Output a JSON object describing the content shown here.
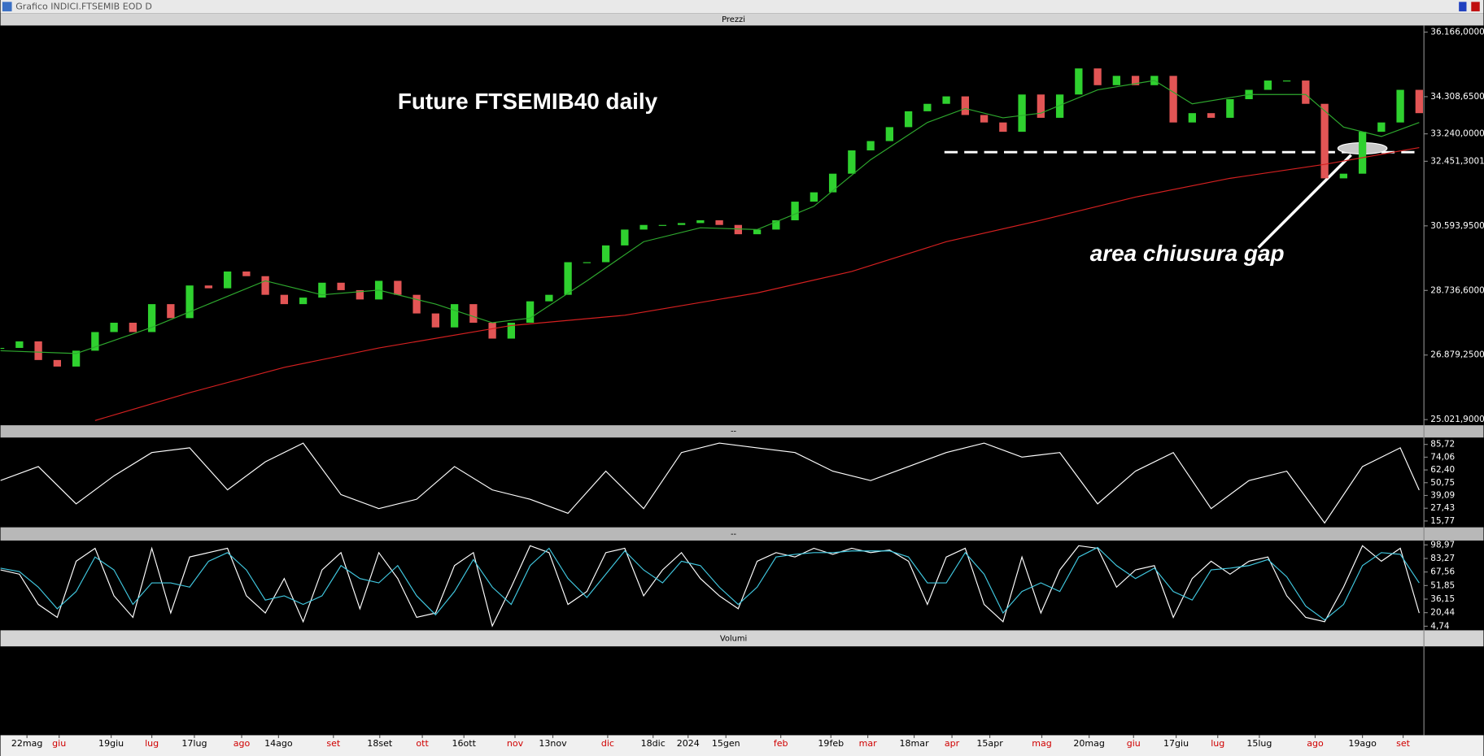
{
  "window_title": "Grafico INDICI.FTSEMIB EOD D",
  "chart_data": [
    {
      "type": "candlestick",
      "panel_title": "Prezzi",
      "title": "Future FTSEMIB40 daily",
      "annotation": "area chiusura gap",
      "close": [
        27084,
        27272,
        26736,
        26548,
        27004,
        27540,
        27808,
        27540,
        28343,
        27941,
        28879,
        28799,
        29281,
        29147,
        28611,
        28343,
        28531,
        28959,
        28745,
        28477,
        29013,
        28611,
        28075,
        27674,
        28343,
        27808,
        27352,
        27808,
        28424,
        28611,
        29549,
        29549,
        30031,
        30487,
        30620,
        30620,
        30674,
        30754,
        30620,
        30353,
        30487,
        30754,
        31290,
        31558,
        32094,
        32764,
        33032,
        33433,
        33889,
        34103,
        34317,
        33782,
        33567,
        33299,
        34371,
        33701,
        34371,
        35121,
        34639,
        34907,
        34639,
        34907,
        33567,
        33835,
        33701,
        34237,
        34505,
        34773,
        34773,
        34103,
        31960,
        32094,
        33299,
        33567,
        34505,
        33835
      ],
      "up_color": "#2fd12f",
      "down_color": "#e25555",
      "lines": [
        {
          "color": "#2ea82e",
          "x": [
            0,
            4,
            8,
            11,
            14,
            17,
            20,
            23,
            26,
            28,
            31,
            34,
            37,
            40,
            43,
            46,
            49,
            51,
            53,
            55,
            58,
            61,
            63,
            66,
            69,
            71,
            73,
            75
          ],
          "values": [
            27004,
            26923,
            27674,
            28343,
            29013,
            28611,
            28745,
            28343,
            27808,
            27941,
            29013,
            30138,
            30540,
            30487,
            31156,
            32496,
            33567,
            33969,
            33701,
            33835,
            34505,
            34773,
            34103,
            34371,
            34371,
            33433,
            33166,
            33567
          ]
        },
        {
          "color": "#d42020",
          "x": [
            5,
            10,
            15,
            20,
            27,
            33,
            40,
            45,
            50,
            55,
            60,
            65,
            70,
            75
          ],
          "values": [
            24995,
            25798,
            26522,
            27084,
            27727,
            28022,
            28665,
            29281,
            30138,
            30754,
            31424,
            31960,
            32362,
            32844
          ]
        }
      ],
      "xlim": [
        0,
        75.25
      ],
      "ylim": [
        24860,
        36355
      ],
      "yticks": [
        {
          "value": 36166,
          "label": "36.166,0000"
        },
        {
          "value": 34308.65,
          "label": "34.308,6500"
        },
        {
          "value": 33240,
          "label": "33.240,0000"
        },
        {
          "value": 32451.3001,
          "label": "32.451,3001"
        },
        {
          "value": 30593.95,
          "label": "30.593,9500"
        },
        {
          "value": 28736.6,
          "label": "28.736,6000"
        },
        {
          "value": 26879.25,
          "label": "26.879,2500"
        },
        {
          "value": 25021.9,
          "label": "25.021,9000"
        }
      ],
      "xticks": [
        {
          "value": 1.4,
          "label": "22mag",
          "color": "#000000"
        },
        {
          "value": 3.1,
          "label": "giu",
          "color": "#d00000"
        },
        {
          "value": 5.85,
          "label": "19giu",
          "color": "#000000"
        },
        {
          "value": 8,
          "label": "lug",
          "color": "#d00000"
        },
        {
          "value": 10.25,
          "label": "17lug",
          "color": "#000000"
        },
        {
          "value": 12.75,
          "label": "ago",
          "color": "#d00000"
        },
        {
          "value": 14.7,
          "label": "14ago",
          "color": "#000000"
        },
        {
          "value": 17.6,
          "label": "set",
          "color": "#d00000"
        },
        {
          "value": 20.05,
          "label": "18set",
          "color": "#000000"
        },
        {
          "value": 22.3,
          "label": "ott",
          "color": "#d00000"
        },
        {
          "value": 24.5,
          "label": "16ott",
          "color": "#000000"
        },
        {
          "value": 27.2,
          "label": "nov",
          "color": "#d00000"
        },
        {
          "value": 29.2,
          "label": "13nov",
          "color": "#000000"
        },
        {
          "value": 32.1,
          "label": "dic",
          "color": "#d00000"
        },
        {
          "value": 34.5,
          "label": "18dic",
          "color": "#000000"
        },
        {
          "value": 36.35,
          "label": "2024",
          "color": "#000000"
        },
        {
          "value": 38.35,
          "label": "15gen",
          "color": "#000000"
        },
        {
          "value": 41.25,
          "label": "feb",
          "color": "#d00000"
        },
        {
          "value": 43.9,
          "label": "19feb",
          "color": "#000000"
        },
        {
          "value": 45.85,
          "label": "mar",
          "color": "#d00000"
        },
        {
          "value": 48.3,
          "label": "18mar",
          "color": "#000000"
        },
        {
          "value": 50.3,
          "label": "apr",
          "color": "#d00000"
        },
        {
          "value": 52.3,
          "label": "15apr",
          "color": "#000000"
        },
        {
          "value": 55.05,
          "label": "mag",
          "color": "#d00000"
        },
        {
          "value": 57.55,
          "label": "20mag",
          "color": "#000000"
        },
        {
          "value": 59.9,
          "label": "giu",
          "color": "#d00000"
        },
        {
          "value": 62.15,
          "label": "17giu",
          "color": "#000000"
        },
        {
          "value": 64.35,
          "label": "lug",
          "color": "#d00000"
        },
        {
          "value": 66.55,
          "label": "15lug",
          "color": "#000000"
        },
        {
          "value": 69.5,
          "label": "ago",
          "color": "#d00000"
        },
        {
          "value": 72,
          "label": "19ago",
          "color": "#000000"
        },
        {
          "value": 74.15,
          "label": "set",
          "color": "#d00000"
        }
      ]
    },
    {
      "type": "line",
      "panel_title": "--",
      "x": [
        0,
        2,
        4,
        6,
        8,
        10,
        12,
        14,
        16,
        18,
        20,
        22,
        24,
        26,
        28,
        30,
        32,
        34,
        36,
        38,
        40,
        42,
        44,
        46,
        48,
        50,
        52,
        54,
        56,
        58,
        60,
        62,
        64,
        66,
        68,
        70,
        72,
        74,
        75
      ],
      "series": [
        {
          "color": "#ffffff",
          "values": [
            52.7,
            65.5,
            31.4,
            57,
            78.3,
            82.6,
            44.2,
            69.8,
            86.9,
            39.9,
            27.1,
            35.6,
            65.5,
            44.2,
            35.6,
            22.8,
            61.3,
            27.1,
            78.3,
            86.9,
            82.6,
            78.3,
            61.3,
            52.7,
            65.5,
            78.3,
            86.9,
            74.1,
            78.3,
            31.4,
            61.3,
            78.3,
            27.1,
            52.7,
            61.3,
            14,
            65.5,
            82.6,
            44
          ]
        }
      ],
      "xlim": [
        0,
        75.25
      ],
      "ylim": [
        10,
        92
      ],
      "yticks": [
        {
          "value": 85.72,
          "label": "85,72"
        },
        {
          "value": 74.06,
          "label": "74,06"
        },
        {
          "value": 62.4,
          "label": "62,40"
        },
        {
          "value": 50.75,
          "label": "50,75"
        },
        {
          "value": 39.09,
          "label": "39,09"
        },
        {
          "value": 27.43,
          "label": "27,43"
        },
        {
          "value": 15.77,
          "label": "15,77"
        }
      ]
    },
    {
      "type": "line",
      "panel_title": "--",
      "x": [
        0,
        1,
        2,
        3,
        4,
        5,
        6,
        7,
        8,
        9,
        10,
        11,
        12,
        13,
        14,
        15,
        16,
        17,
        18,
        19,
        20,
        21,
        22,
        23,
        24,
        25,
        26,
        27,
        28,
        29,
        30,
        31,
        32,
        33,
        34,
        35,
        36,
        37,
        38,
        39,
        40,
        41,
        42,
        43,
        44,
        45,
        46,
        47,
        48,
        49,
        50,
        51,
        52,
        53,
        54,
        55,
        56,
        57,
        58,
        59,
        60,
        61,
        62,
        63,
        64,
        65,
        66,
        67,
        68,
        69,
        70,
        71,
        72,
        73,
        74,
        75
      ],
      "series": [
        {
          "color": "#ffffff",
          "values": [
            70,
            65,
            30,
            15,
            80,
            95,
            40,
            15,
            95,
            20,
            85,
            90,
            95,
            40,
            20,
            60,
            10,
            70,
            90,
            25,
            90,
            60,
            15,
            20,
            75,
            90,
            5,
            50,
            98,
            90,
            30,
            45,
            90,
            95,
            40,
            70,
            90,
            60,
            40,
            25,
            80,
            90,
            85,
            95,
            88,
            95,
            90,
            93,
            80,
            30,
            85,
            95,
            30,
            10,
            85,
            20,
            70,
            98,
            95,
            50,
            70,
            75,
            15,
            60,
            80,
            65,
            80,
            85,
            40,
            15,
            10,
            50,
            98,
            80,
            95,
            20
          ]
        },
        {
          "color": "#40c8e0",
          "values": [
            72,
            68,
            50,
            25,
            45,
            85,
            70,
            30,
            55,
            55,
            50,
            80,
            90,
            70,
            35,
            40,
            30,
            40,
            75,
            60,
            55,
            75,
            40,
            18,
            45,
            82,
            50,
            30,
            75,
            95,
            60,
            38,
            65,
            92,
            70,
            55,
            80,
            75,
            50,
            30,
            50,
            85,
            88,
            90,
            90,
            92,
            92,
            92,
            85,
            55,
            55,
            90,
            65,
            20,
            45,
            55,
            45,
            85,
            96,
            75,
            60,
            72,
            45,
            35,
            70,
            72,
            75,
            82,
            62,
            28,
            12,
            30,
            75,
            90,
            88,
            55
          ]
        }
      ],
      "xlim": [
        0,
        75.25
      ],
      "ylim": [
        0,
        104
      ],
      "yticks": [
        {
          "value": 98.97,
          "label": "98,97"
        },
        {
          "value": 83.27,
          "label": "83,27"
        },
        {
          "value": 67.56,
          "label": "67,56"
        },
        {
          "value": 51.85,
          "label": "51,85"
        },
        {
          "value": 36.15,
          "label": "36,15"
        },
        {
          "value": 20.44,
          "label": "20,44"
        },
        {
          "value": 4.74,
          "label": "4,74"
        }
      ]
    },
    {
      "type": "volume",
      "panel_title": "Volumi"
    }
  ]
}
